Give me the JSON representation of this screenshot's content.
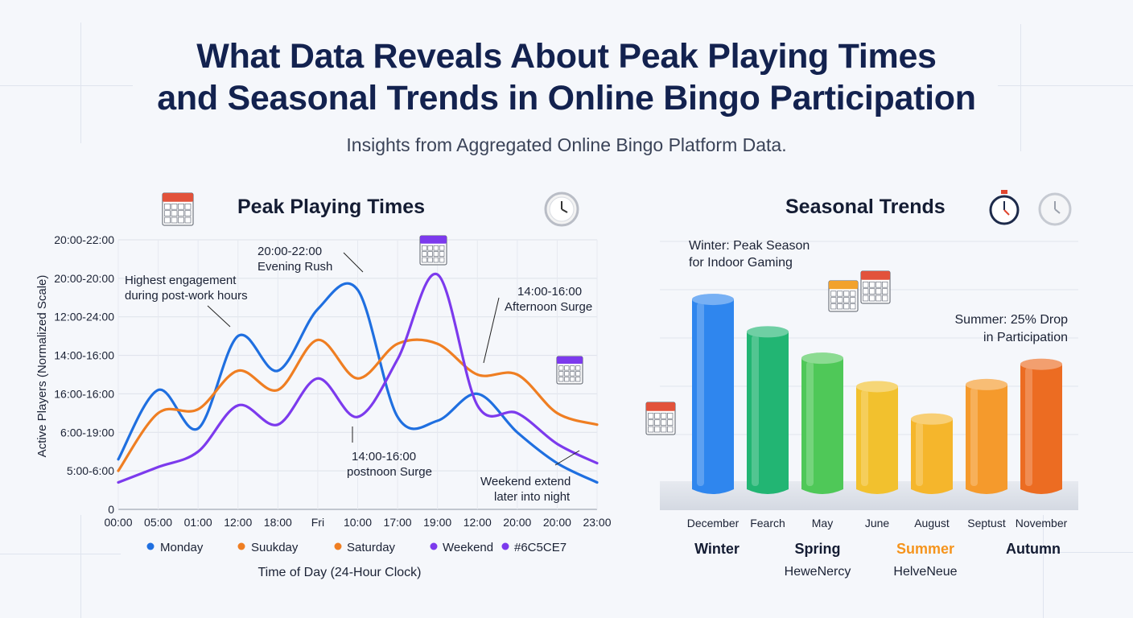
{
  "header": {
    "title_line1": "What Data Reveals About Peak Playing Times",
    "title_line2": "and Seasonal Trends in Online Bingo Participation",
    "subtitle": "Insights from Aggregated Online Bingo Platform Data."
  },
  "icons": {
    "calendar": "calendar-icon",
    "clock": "clock-icon",
    "stopwatch": "stopwatch-icon"
  },
  "left_panel": {
    "title": "Peak Playing Times"
  },
  "right_panel": {
    "title": "Seasonal Trends"
  },
  "chart_data": [
    {
      "type": "line",
      "title": "Peak Playing Times",
      "xlabel": "Time of Day (24-Hour Clock)",
      "ylabel": "Active Players (Normalized Scale)",
      "x_tick_labels": [
        "00:00",
        "05:00",
        "01:00",
        "12:00",
        "18:00",
        "Fri",
        "10:00",
        "17:00",
        "19:00",
        "12:00",
        "20:00",
        "20:00",
        "23:00"
      ],
      "y_tick_labels": [
        "0",
        "5:00-6:00",
        "6:00-19:00",
        "16:00-16:00",
        "14:00-16:00",
        "12:00-24:00",
        "20:00-20:00",
        "20:00-22:00"
      ],
      "ylim": [
        0,
        7
      ],
      "grid": true,
      "legend": [
        {
          "name": "Monday",
          "color": "#1f6fe0"
        },
        {
          "name": "Suukday",
          "color": "#ef7e22"
        },
        {
          "name": "Saturday",
          "color": "#ef7e22"
        },
        {
          "name": "Weekend",
          "color": "#7c3aed"
        },
        {
          "name": "#6C5CE7",
          "color": "#7c3aed"
        }
      ],
      "legend_position": "bottom",
      "series": [
        {
          "color": "#1f6fe0",
          "x": [
            0,
            1,
            2,
            3,
            4,
            5,
            6,
            7,
            8,
            9,
            10,
            11,
            12
          ],
          "values": [
            1.3,
            3.1,
            2.1,
            4.5,
            3.6,
            5.2,
            5.7,
            2.4,
            2.3,
            3.0,
            2.0,
            1.2,
            0.7
          ]
        },
        {
          "color": "#ef7e22",
          "x": [
            0,
            1,
            2,
            3,
            4,
            5,
            6,
            7,
            8,
            9,
            10,
            11,
            12
          ],
          "values": [
            1.0,
            2.5,
            2.6,
            3.6,
            3.1,
            4.4,
            3.4,
            4.3,
            4.3,
            3.5,
            3.5,
            2.5,
            2.2
          ]
        },
        {
          "color": "#7c3aed",
          "x": [
            0,
            1,
            2,
            3,
            4,
            5,
            6,
            7,
            8,
            9,
            10,
            11,
            12
          ],
          "values": [
            0.7,
            1.1,
            1.5,
            2.7,
            2.2,
            3.4,
            2.4,
            3.9,
            6.1,
            2.7,
            2.5,
            1.7,
            1.2
          ]
        }
      ],
      "annotations": [
        {
          "line1": "Highest engagement",
          "line2": "during post-work hours"
        },
        {
          "line1": "20:00-22:00",
          "line2": "Evening Rush"
        },
        {
          "line1": "14:00-16:00",
          "line2": "Afternoon Surge"
        },
        {
          "line1": "14:00-16:00",
          "line2": "postnoon Surge"
        },
        {
          "line1": "Weekend extend",
          "line2": "later into night"
        }
      ]
    },
    {
      "type": "bar",
      "title": "Seasonal Trends",
      "categories": [
        "December",
        "Fearch",
        "May",
        "June",
        "August",
        "Septust",
        "November"
      ],
      "values": [
        96,
        80,
        67,
        53,
        37,
        54,
        64
      ],
      "ylim": [
        0,
        100
      ],
      "colors": [
        "#2f86ee",
        "#22b573",
        "#4fc858",
        "#f2c12e",
        "#f5b62c",
        "#f59a2c",
        "#ec6c22"
      ],
      "season_labels": [
        {
          "label": "Winter",
          "color": "#141c33"
        },
        {
          "label": "Spring",
          "color": "#141c33"
        },
        {
          "label": "Summer",
          "color": "#f5941d"
        },
        {
          "label": "Autumn",
          "color": "#141c33"
        }
      ],
      "season_sublabels": [
        "HeweNercy",
        "HelveNeue"
      ],
      "annotations": [
        {
          "line1": "Winter: Peak Season",
          "line2": "for Indoor Gaming"
        },
        {
          "line1": "Summer: 25% Drop",
          "line2": "in Participation"
        }
      ]
    }
  ]
}
